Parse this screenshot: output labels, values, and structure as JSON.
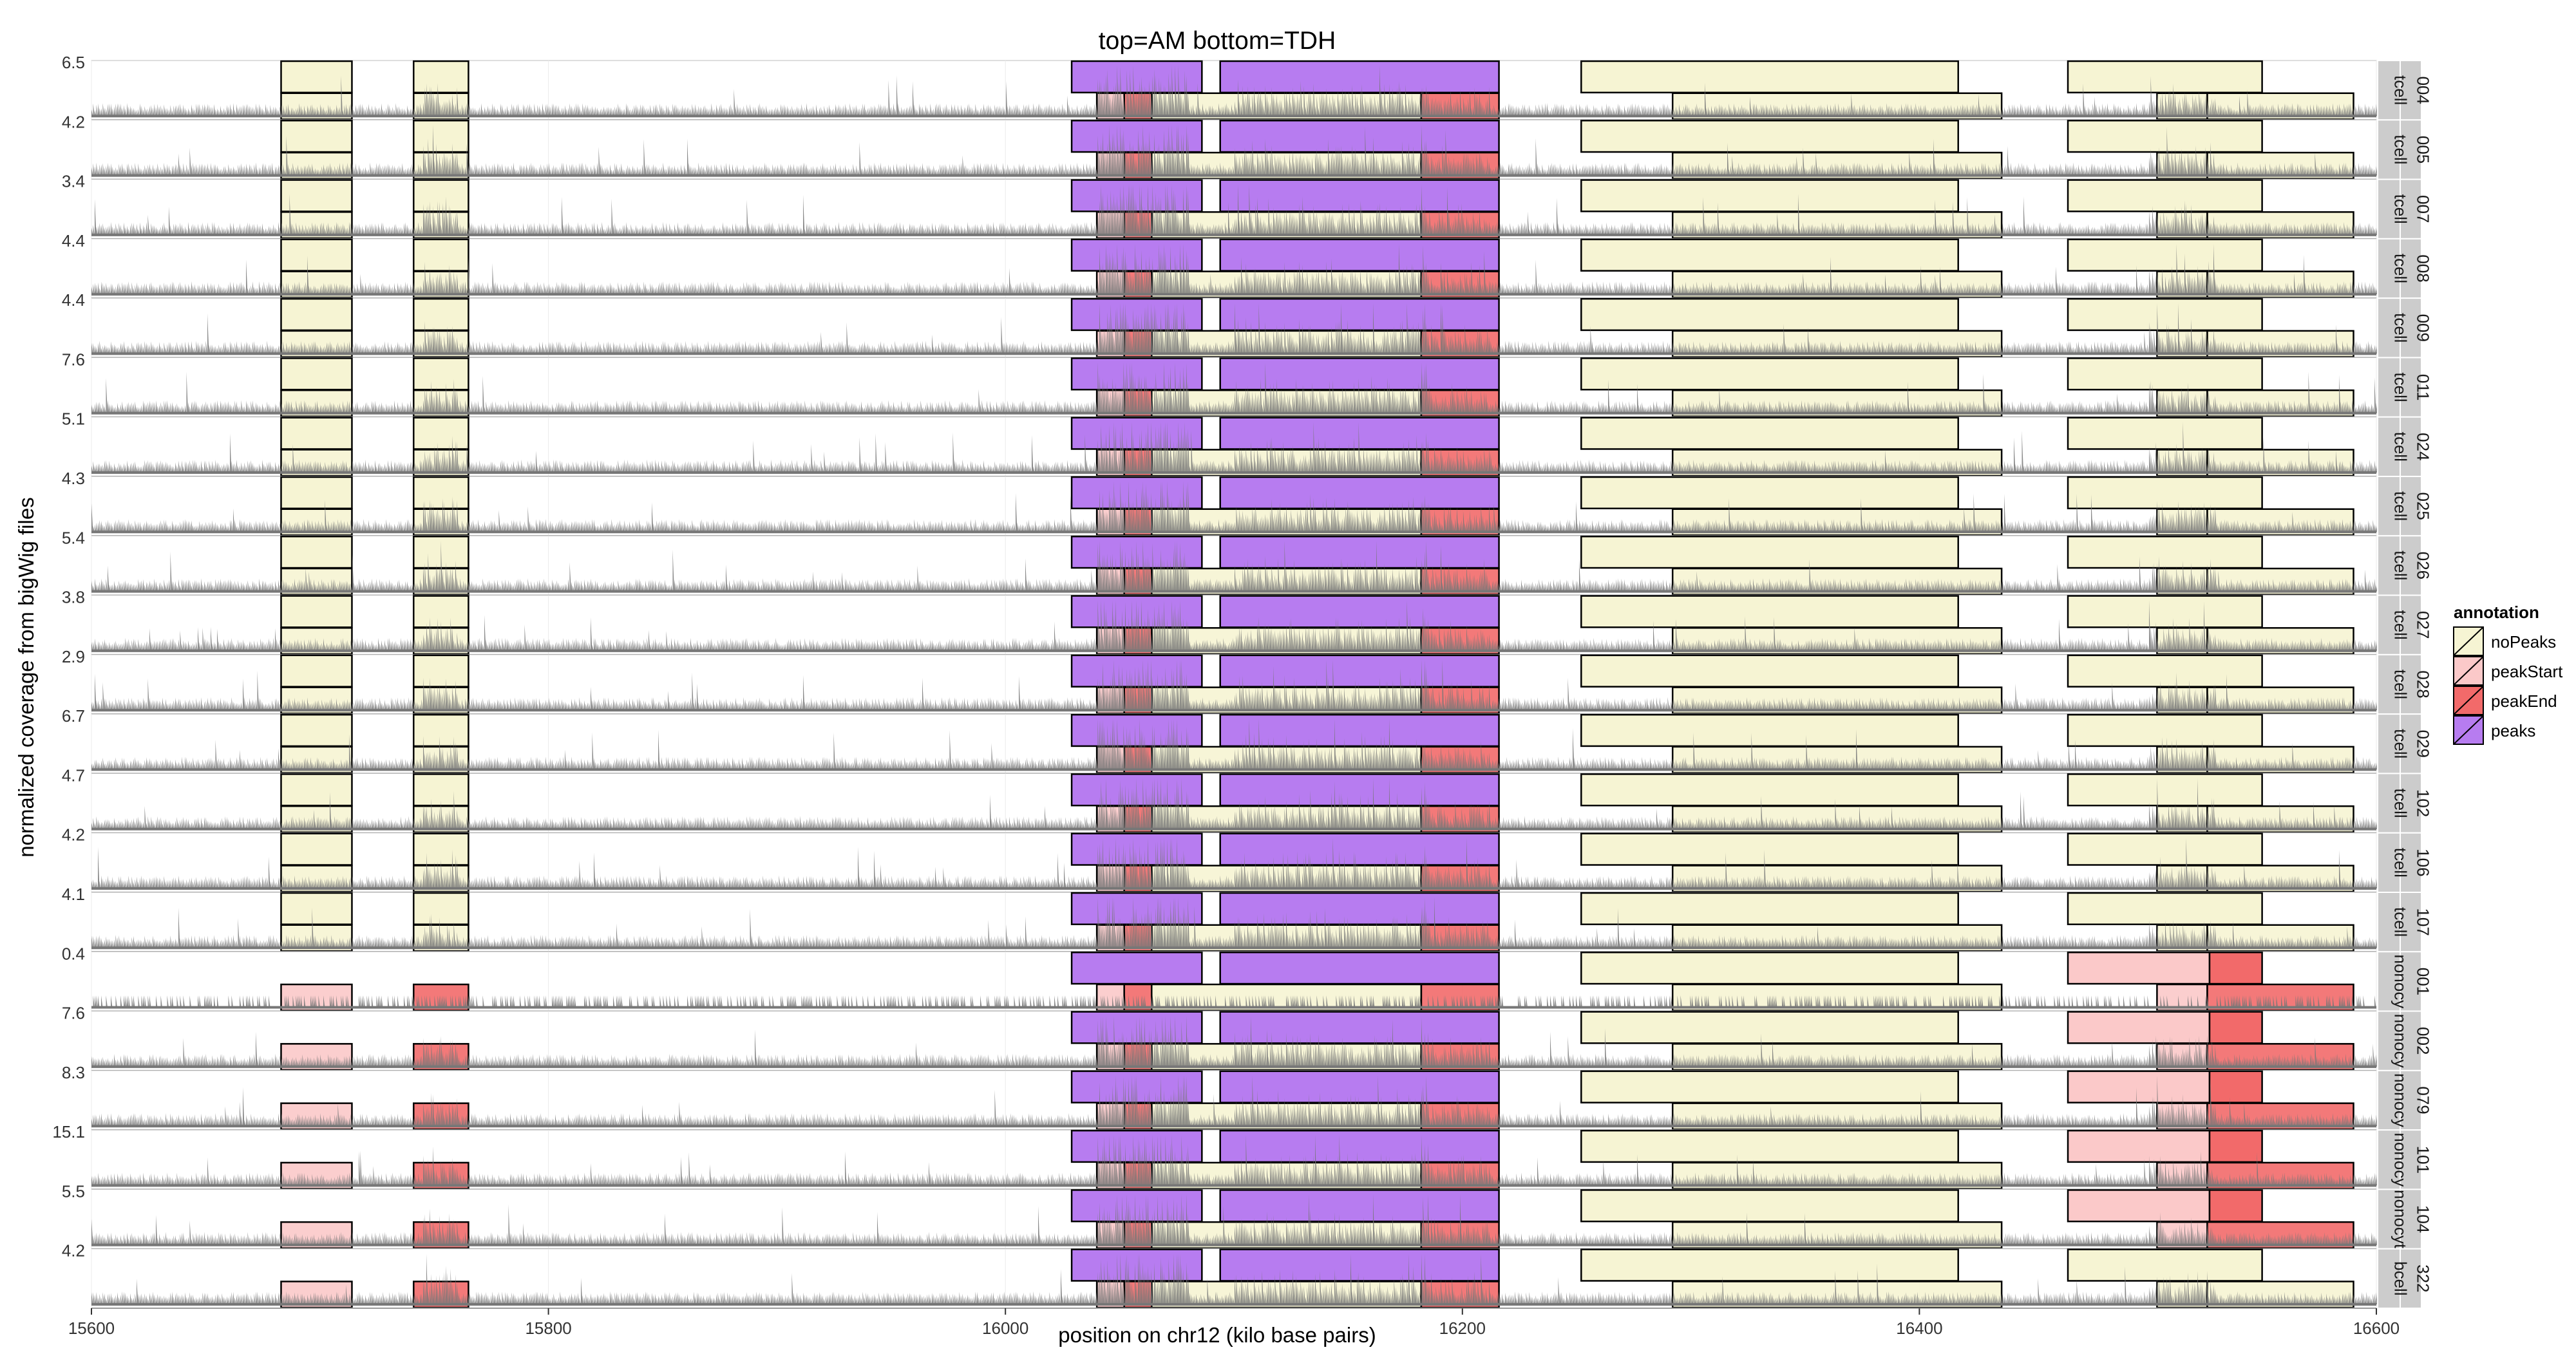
{
  "chart_data": {
    "type": "area",
    "title": "top=AM bottom=TDH",
    "xlabel": "position on chr12 (kilo base pairs)",
    "ylabel": "normalized coverage from bigWig files",
    "xlim": [
      15600,
      16600
    ],
    "x_ticks": [
      15600,
      15800,
      16000,
      16200,
      16400,
      16600
    ],
    "x_tick_labels": [
      "15600",
      "15800",
      "16000",
      "16200",
      "16400",
      "16600"
    ],
    "panels": [
      {
        "id": "004",
        "cell_type": "tcell",
        "ymax": "6.5"
      },
      {
        "id": "005",
        "cell_type": "tcell",
        "ymax": "4.2"
      },
      {
        "id": "007",
        "cell_type": "tcell",
        "ymax": "3.4"
      },
      {
        "id": "008",
        "cell_type": "tcell",
        "ymax": "4.4"
      },
      {
        "id": "009",
        "cell_type": "tcell",
        "ymax": "4.4"
      },
      {
        "id": "011",
        "cell_type": "tcell",
        "ymax": "7.6"
      },
      {
        "id": "024",
        "cell_type": "tcell",
        "ymax": "5.1"
      },
      {
        "id": "025",
        "cell_type": "tcell",
        "ymax": "4.3"
      },
      {
        "id": "026",
        "cell_type": "tcell",
        "ymax": "5.4"
      },
      {
        "id": "027",
        "cell_type": "tcell",
        "ymax": "3.8"
      },
      {
        "id": "028",
        "cell_type": "tcell",
        "ymax": "2.9"
      },
      {
        "id": "029",
        "cell_type": "tcell",
        "ymax": "6.7"
      },
      {
        "id": "102",
        "cell_type": "tcell",
        "ymax": "4.7"
      },
      {
        "id": "106",
        "cell_type": "tcell",
        "ymax": "4.2"
      },
      {
        "id": "107",
        "cell_type": "tcell",
        "ymax": "4.1"
      },
      {
        "id": "001",
        "cell_type": "monocyte",
        "strip_label": "nonocy",
        "ymax": "0.4"
      },
      {
        "id": "002",
        "cell_type": "monocyte",
        "strip_label": "nonocy",
        "ymax": "7.6"
      },
      {
        "id": "079",
        "cell_type": "monocyte",
        "strip_label": "nonocy",
        "ymax": "8.3"
      },
      {
        "id": "101",
        "cell_type": "monocyte",
        "strip_label": "nonocy",
        "ymax": "15.1"
      },
      {
        "id": "104",
        "cell_type": "monocyte",
        "strip_label": "nonocyt",
        "ymax": "5.5"
      },
      {
        "id": "322",
        "cell_type": "bcell",
        "ymax": "4.2"
      }
    ],
    "annotations_top": {
      "tcell": [
        [
          15683,
          15714,
          "noPeaks"
        ],
        [
          15741,
          15765,
          "noPeaks"
        ],
        [
          16029,
          16086,
          "peaks"
        ],
        [
          16094,
          16216,
          "peaks"
        ],
        [
          16252,
          16417,
          "noPeaks"
        ],
        [
          16465,
          16550,
          "noPeaks"
        ]
      ],
      "monocyte": [
        [
          16029,
          16086,
          "peaks"
        ],
        [
          16094,
          16216,
          "peaks"
        ],
        [
          16252,
          16417,
          "noPeaks"
        ],
        [
          16465,
          16527,
          "peakStart"
        ],
        [
          16527,
          16550,
          "peakEnd"
        ]
      ],
      "bcell": [
        [
          16029,
          16086,
          "peaks"
        ],
        [
          16094,
          16216,
          "peaks"
        ],
        [
          16252,
          16417,
          "noPeaks"
        ],
        [
          16465,
          16550,
          "noPeaks"
        ]
      ]
    },
    "annotations_bottom": {
      "tcell": [
        [
          15683,
          15714,
          "noPeaks"
        ],
        [
          15741,
          15765,
          "noPeaks"
        ],
        [
          16040,
          16052,
          "peakStart"
        ],
        [
          16052,
          16064,
          "peakEnd"
        ],
        [
          16064,
          16182,
          "noPeaks"
        ],
        [
          16182,
          16216,
          "peakEnd"
        ],
        [
          16292,
          16436,
          "noPeaks"
        ],
        [
          16504,
          16526,
          "noPeaks"
        ],
        [
          16526,
          16590,
          "noPeaks"
        ]
      ],
      "monocyte": [
        [
          15683,
          15714,
          "peakStart"
        ],
        [
          15741,
          15765,
          "peakEnd"
        ],
        [
          16040,
          16052,
          "peakStart"
        ],
        [
          16052,
          16064,
          "peakEnd"
        ],
        [
          16064,
          16182,
          "noPeaks"
        ],
        [
          16182,
          16216,
          "peakEnd"
        ],
        [
          16292,
          16436,
          "noPeaks"
        ],
        [
          16504,
          16526,
          "peakStart"
        ],
        [
          16526,
          16590,
          "peakEnd"
        ]
      ],
      "bcell": [
        [
          15683,
          15714,
          "peakStart"
        ],
        [
          15741,
          15765,
          "peakEnd"
        ],
        [
          16040,
          16052,
          "peakStart"
        ],
        [
          16052,
          16064,
          "peakEnd"
        ],
        [
          16064,
          16182,
          "noPeaks"
        ],
        [
          16182,
          16216,
          "peakEnd"
        ],
        [
          16292,
          16436,
          "noPeaks"
        ],
        [
          16504,
          16526,
          "noPeaks"
        ],
        [
          16526,
          16590,
          "noPeaks"
        ]
      ]
    },
    "coverage_hotspots": [
      [
        15745,
        15760,
        1.6
      ],
      [
        16040,
        16080,
        2.6
      ],
      [
        16100,
        16185,
        1.5
      ],
      [
        16182,
        16212,
        1.3
      ],
      [
        16500,
        16530,
        1.4
      ]
    ],
    "legend": {
      "title": "annotation",
      "placement": "right",
      "items": [
        {
          "label": "noPeaks",
          "color": "#f6f4d3"
        },
        {
          "label": "peakStart",
          "color": "#fbc9c9"
        },
        {
          "label": "peakEnd",
          "color": "#f26a6a"
        },
        {
          "label": "peaks",
          "color": "#b77cf0"
        }
      ]
    },
    "colors": {
      "noPeaks": "#f6f4d3",
      "peakStart": "#fbc9c9",
      "peakEnd": "#f26a6a",
      "peaks": "#b77cf0",
      "signal": "#777777",
      "strip_bg": "#cccccc",
      "gridline": "#ebebeb"
    },
    "grid": true
  }
}
